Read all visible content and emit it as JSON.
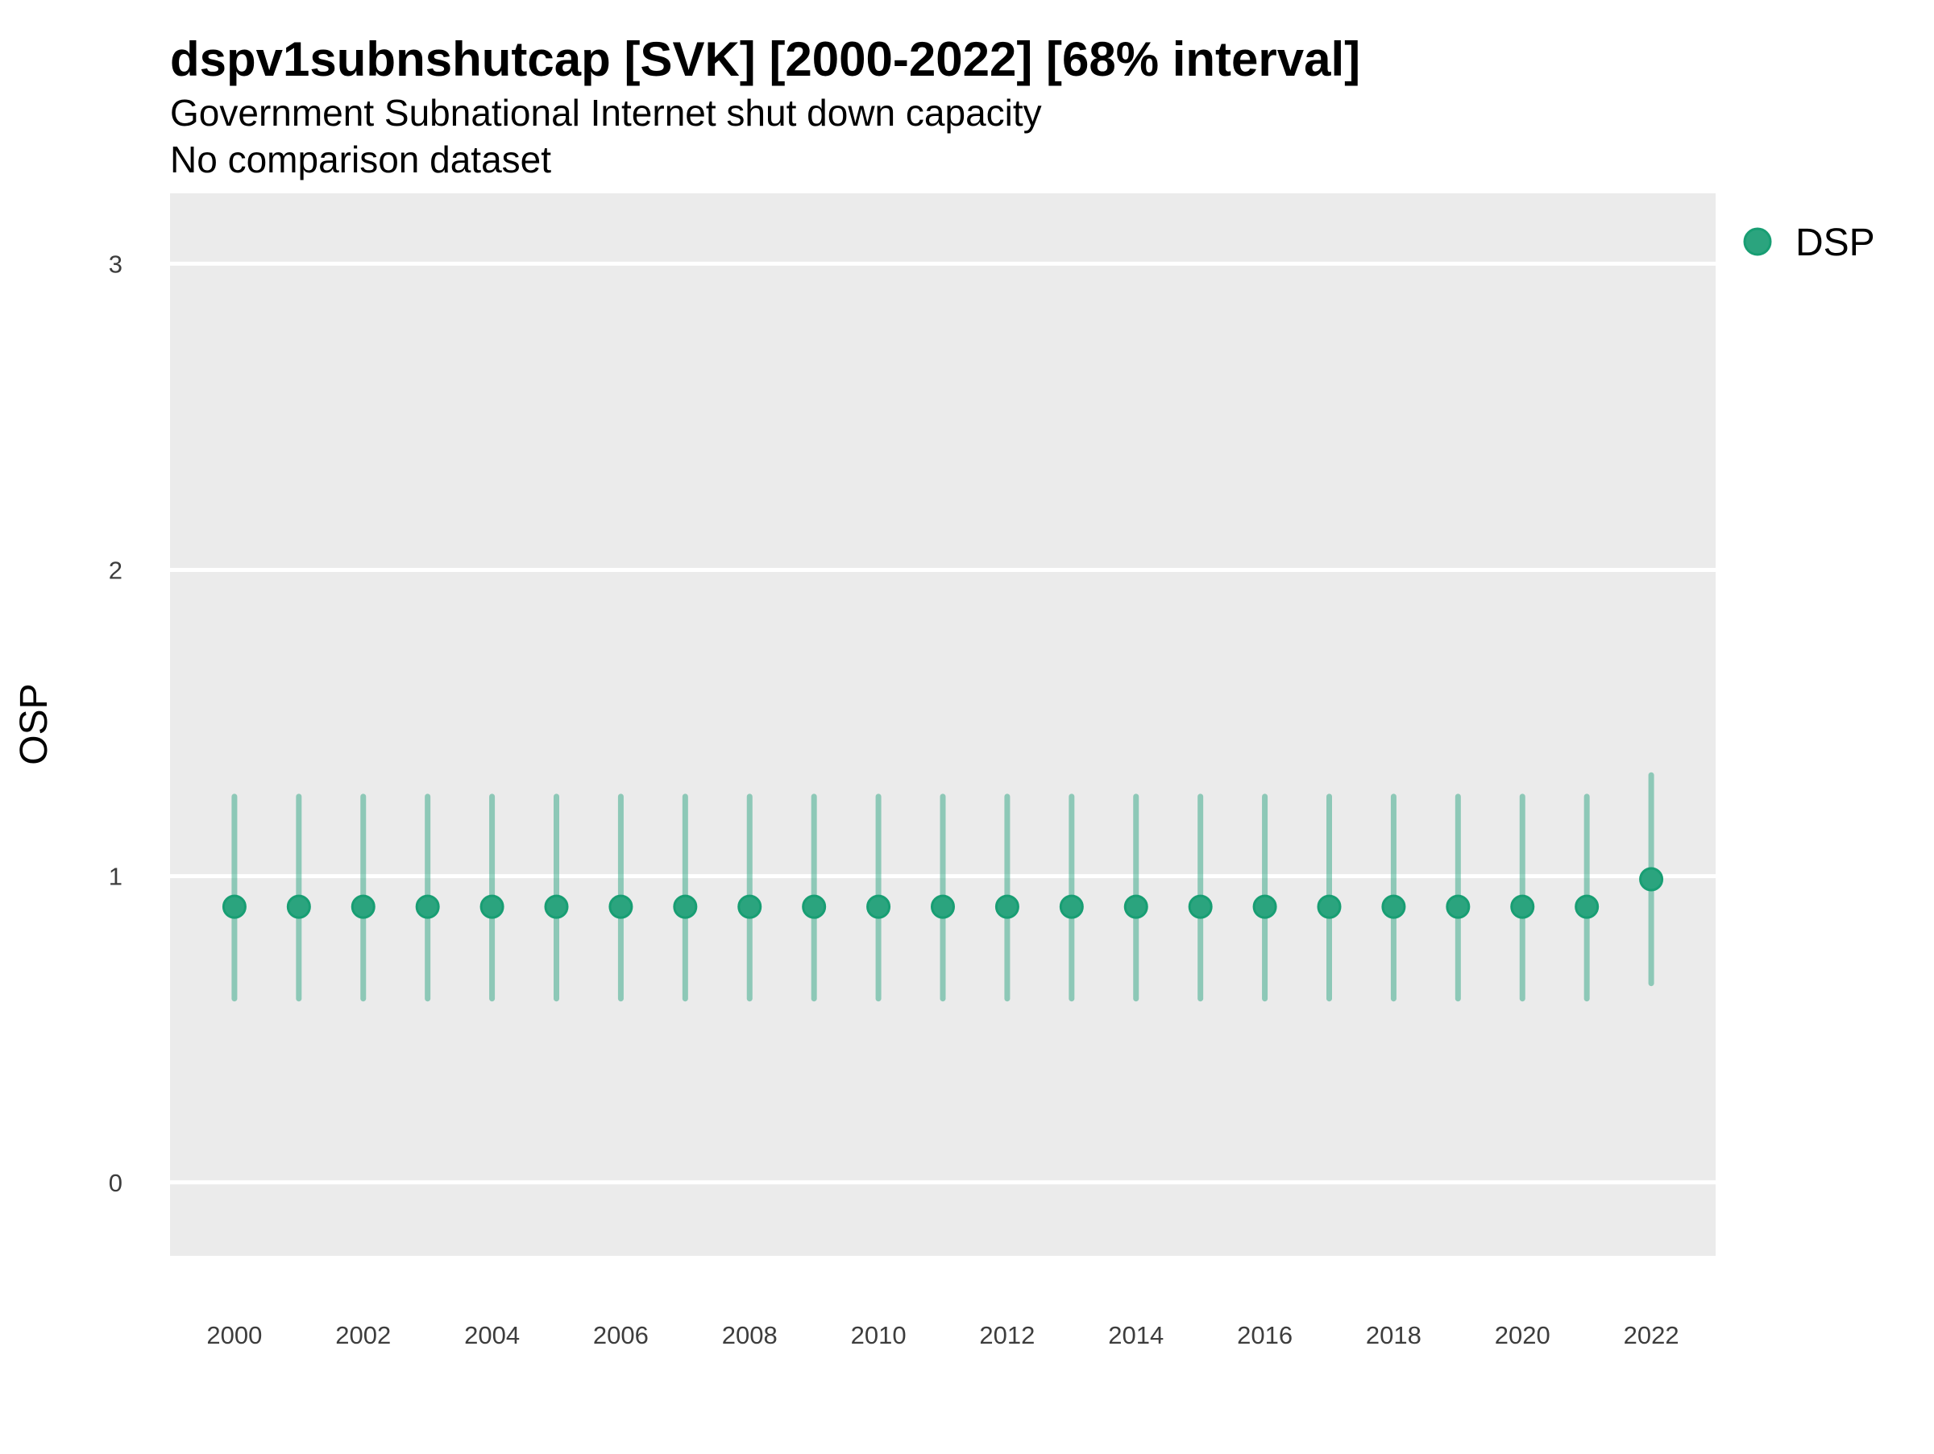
{
  "header": {
    "title": "dspv1subnshutcap [SVK] [2000-2022] [68% interval]",
    "subtitle": "Government Subnational Internet shut down capacity",
    "note": "No comparison dataset"
  },
  "y_axis": {
    "title": "OSP"
  },
  "x_axis": {
    "title": ""
  },
  "legend": {
    "position": "right",
    "items": [
      {
        "label": "DSP"
      }
    ]
  },
  "colors": {
    "panel_bg": "#EBEBEB",
    "grid": "#FFFFFF",
    "interval_stroke": "rgba(27,158,119,0.45)",
    "point_fill": "#2BA47E",
    "point_stroke": "#189E73",
    "tick_text": "#3D3D3D",
    "text": "#000000",
    "figure_bg": "#FFFFFF"
  },
  "chart_data": {
    "type": "scatter",
    "subtype": "pointrange",
    "title": "dspv1subnshutcap [SVK] [2000-2022] [68% interval]",
    "subtitle": "Government Subnational Internet shut down capacity",
    "note": "No comparison dataset",
    "interval": "68%",
    "xlabel": "",
    "ylabel": "OSP",
    "grid": "horizontal-major-only",
    "legend_position": "right",
    "xlim": [
      1999,
      2023
    ],
    "ylim": [
      -0.24,
      3.23
    ],
    "x_ticks": [
      "2000",
      "2002",
      "2004",
      "2006",
      "2008",
      "2010",
      "2012",
      "2014",
      "2016",
      "2018",
      "2020",
      "2022"
    ],
    "x_tick_values": [
      2000,
      2002,
      2004,
      2006,
      2008,
      2010,
      2012,
      2014,
      2016,
      2018,
      2020,
      2022
    ],
    "y_ticks": [
      "0",
      "1",
      "2",
      "3"
    ],
    "y_tick_values": [
      0,
      1,
      2,
      3
    ],
    "series": [
      {
        "name": "DSP",
        "x": [
          2000,
          2001,
          2002,
          2003,
          2004,
          2005,
          2006,
          2007,
          2008,
          2009,
          2010,
          2011,
          2012,
          2013,
          2014,
          2015,
          2016,
          2017,
          2018,
          2019,
          2020,
          2021,
          2022
        ],
        "y": [
          0.9,
          0.9,
          0.9,
          0.9,
          0.9,
          0.9,
          0.9,
          0.9,
          0.9,
          0.9,
          0.9,
          0.9,
          0.9,
          0.9,
          0.9,
          0.9,
          0.9,
          0.9,
          0.9,
          0.9,
          0.9,
          0.9,
          0.99
        ],
        "y_lower": [
          0.6,
          0.6,
          0.6,
          0.6,
          0.6,
          0.6,
          0.6,
          0.6,
          0.6,
          0.6,
          0.6,
          0.6,
          0.6,
          0.6,
          0.6,
          0.6,
          0.6,
          0.6,
          0.6,
          0.6,
          0.6,
          0.6,
          0.65
        ],
        "y_upper": [
          1.26,
          1.26,
          1.26,
          1.26,
          1.26,
          1.26,
          1.26,
          1.26,
          1.26,
          1.26,
          1.26,
          1.26,
          1.26,
          1.26,
          1.26,
          1.26,
          1.26,
          1.26,
          1.26,
          1.26,
          1.26,
          1.26,
          1.33
        ]
      }
    ]
  }
}
